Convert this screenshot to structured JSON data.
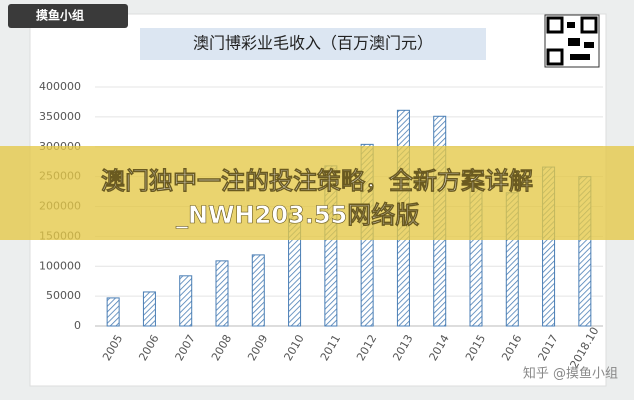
{
  "logo": "摸鱼小组",
  "banner": {
    "lines": [
      "澳门独中一注的投注策略，全新方案详解",
      "_NWH203.55网络版"
    ]
  },
  "watermark": "知乎 @摸鱼小组",
  "chart_data": {
    "type": "bar",
    "title": "澳门博彩业毛收入（百万澳门元）",
    "categories": [
      "2005",
      "2006",
      "2007",
      "2008",
      "2009",
      "2010",
      "2011",
      "2012",
      "2013",
      "2014",
      "2015",
      "2016",
      "2017",
      "2018.10"
    ],
    "values": [
      47000,
      57000,
      84000,
      109000,
      119000,
      189000,
      268000,
      304000,
      361000,
      351000,
      231000,
      223000,
      266000,
      250000
    ],
    "color": "#4a7eb5",
    "ylim": [
      0,
      400000
    ],
    "yticks": [
      0,
      50000,
      100000,
      150000,
      200000,
      250000,
      300000,
      350000,
      400000
    ],
    "grid": true
  }
}
